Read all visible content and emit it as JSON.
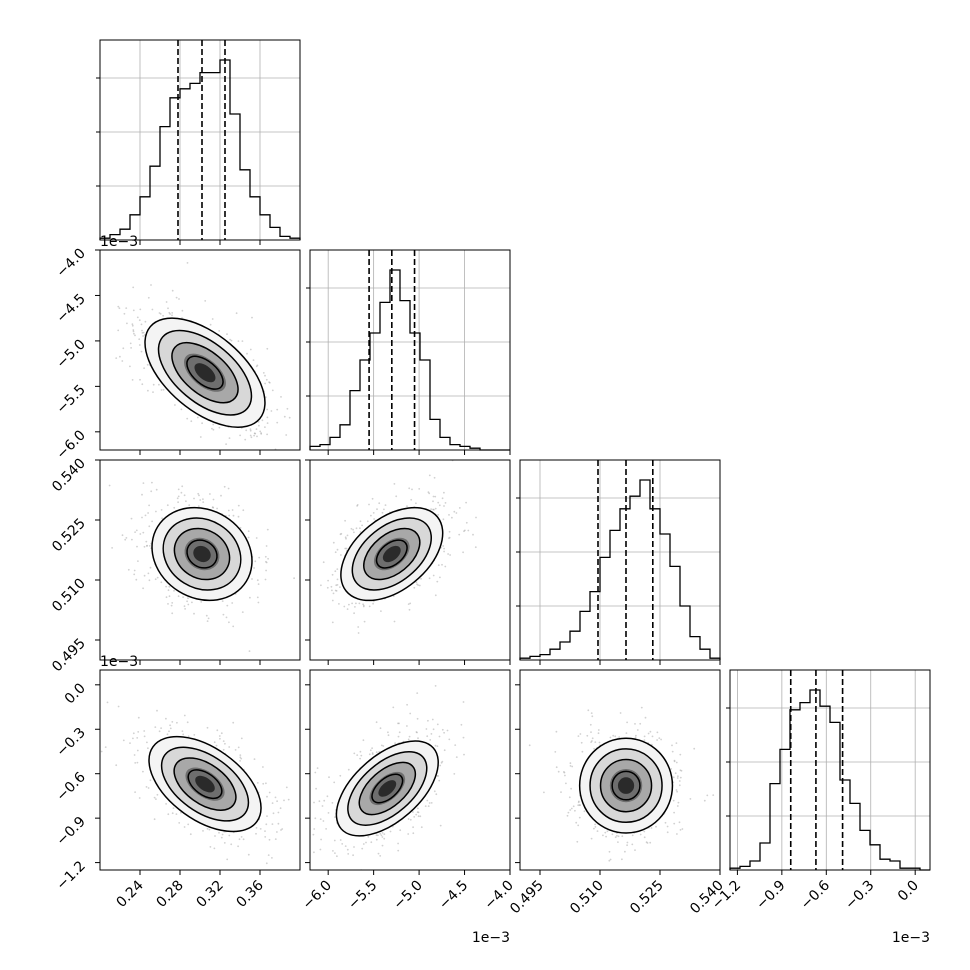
{
  "chart_data": {
    "type": "corner",
    "grid": true,
    "parameters": [
      {
        "range": [
          0.2,
          0.4
        ],
        "ticks": [
          "0.24",
          "0.28",
          "0.32",
          "0.36"
        ],
        "tick_values": [
          0.24,
          0.28,
          0.32,
          0.36
        ],
        "offset_text": "",
        "quantiles": [
          0.278,
          0.302,
          0.325
        ],
        "histogram": [
          0.01,
          0.03,
          0.06,
          0.14,
          0.24,
          0.41,
          0.63,
          0.79,
          0.84,
          0.87,
          0.93,
          0.93,
          1.0,
          0.7,
          0.39,
          0.24,
          0.14,
          0.07,
          0.02,
          0.01
        ]
      },
      {
        "range": [
          -6.2,
          -4.0
        ],
        "ticks": [
          "−6.0",
          "−5.5",
          "−5.0",
          "−4.5",
          "−4.0"
        ],
        "tick_values": [
          -6.0,
          -5.5,
          -5.0,
          -4.5,
          -4.0
        ],
        "offset_text": "1e−3",
        "quantiles": [
          -5.55,
          -5.3,
          -5.05
        ],
        "histogram": [
          0.02,
          0.03,
          0.07,
          0.14,
          0.33,
          0.5,
          0.65,
          0.82,
          1.0,
          0.83,
          0.65,
          0.5,
          0.17,
          0.07,
          0.03,
          0.02,
          0.01,
          0.0,
          0.0,
          0.0
        ]
      },
      {
        "range": [
          0.49,
          0.54
        ],
        "ticks": [
          "0.495",
          "0.510",
          "0.525",
          "0.540"
        ],
        "tick_values": [
          0.495,
          0.51,
          0.525,
          0.54
        ],
        "offset_text": "",
        "quantiles": [
          0.5095,
          0.5165,
          0.5232
        ],
        "histogram": [
          0.01,
          0.02,
          0.03,
          0.06,
          0.1,
          0.16,
          0.27,
          0.38,
          0.57,
          0.72,
          0.84,
          0.91,
          1.0,
          0.84,
          0.7,
          0.52,
          0.3,
          0.13,
          0.06,
          0.01
        ]
      },
      {
        "range": [
          -1.25,
          0.1
        ],
        "ticks": [
          "−1.2",
          "−0.9",
          "−0.6",
          "−0.3",
          "0.0"
        ],
        "tick_values": [
          -1.2,
          -0.9,
          -0.6,
          -0.3,
          0.0
        ],
        "offset_text": "1e−3",
        "quantiles": [
          -0.84,
          -0.67,
          -0.49
        ],
        "histogram": [
          0.01,
          0.02,
          0.05,
          0.15,
          0.48,
          0.67,
          0.89,
          0.93,
          1.0,
          0.91,
          0.82,
          0.5,
          0.37,
          0.22,
          0.14,
          0.06,
          0.05,
          0.01,
          0.01,
          0.0
        ]
      }
    ],
    "pairs": [
      {
        "x": 0,
        "y": 1,
        "center": [
          0.305,
          -5.35
        ],
        "spread": [
          0.03,
          0.3
        ],
        "corr": -0.55
      },
      {
        "x": 0,
        "y": 2,
        "center": [
          0.302,
          0.5165
        ],
        "spread": [
          0.025,
          0.0058
        ],
        "corr": -0.15
      },
      {
        "x": 1,
        "y": 2,
        "center": [
          -5.3,
          0.5165
        ],
        "spread": [
          0.28,
          0.0058
        ],
        "corr": 0.45
      },
      {
        "x": 0,
        "y": 3,
        "center": [
          0.305,
          -0.67
        ],
        "spread": [
          0.028,
          0.16
        ],
        "corr": -0.5
      },
      {
        "x": 1,
        "y": 3,
        "center": [
          -5.35,
          -0.7
        ],
        "spread": [
          0.28,
          0.16
        ],
        "corr": 0.55
      },
      {
        "x": 2,
        "y": 3,
        "center": [
          0.5165,
          -0.68
        ],
        "spread": [
          0.0058,
          0.16
        ],
        "corr": 0.0
      }
    ]
  }
}
